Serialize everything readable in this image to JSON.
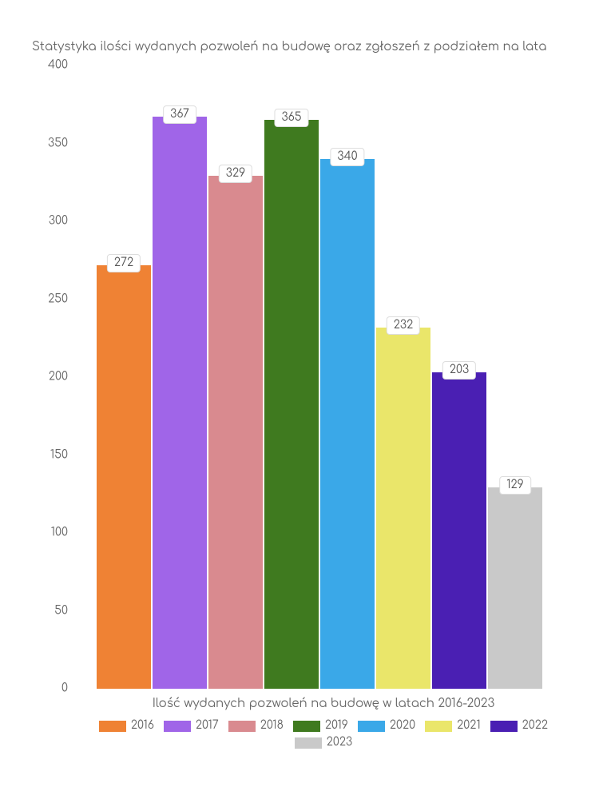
{
  "chart": {
    "type": "bar",
    "title": "Statystyka ilości wydanych pozwoleń na budowę oraz zgłoszeń z podziałem na lata",
    "x_title": "Ilość wydanych pozwoleń na budowę w latach 2016-2023",
    "ylim": [
      0,
      400
    ],
    "ytick_step": 50,
    "background_color": "#ffffff",
    "text_color": "#666666",
    "title_fontsize": 15,
    "tick_fontsize": 14,
    "bar_label_bg": "#ffffff",
    "bar_label_border": "#dddddd",
    "bar_width": 0.95,
    "series": [
      {
        "year": "2016",
        "value": 272,
        "color": "#ef8234"
      },
      {
        "year": "2017",
        "value": 367,
        "color": "#a065e8"
      },
      {
        "year": "2018",
        "value": 329,
        "color": "#d98a8f"
      },
      {
        "year": "2019",
        "value": 365,
        "color": "#3f7a1f"
      },
      {
        "year": "2020",
        "value": 340,
        "color": "#3aa8e8"
      },
      {
        "year": "2021",
        "value": 232,
        "color": "#eae66a"
      },
      {
        "year": "2022",
        "value": 203,
        "color": "#4a1fb3"
      },
      {
        "year": "2023",
        "value": 129,
        "color": "#c9c9c9"
      }
    ],
    "yticks": [
      {
        "v": 0,
        "label": "0"
      },
      {
        "v": 50,
        "label": "50"
      },
      {
        "v": 100,
        "label": "100"
      },
      {
        "v": 150,
        "label": "150"
      },
      {
        "v": 200,
        "label": "200"
      },
      {
        "v": 250,
        "label": "250"
      },
      {
        "v": 300,
        "label": "300"
      },
      {
        "v": 350,
        "label": "350"
      },
      {
        "v": 400,
        "label": "400"
      }
    ]
  }
}
